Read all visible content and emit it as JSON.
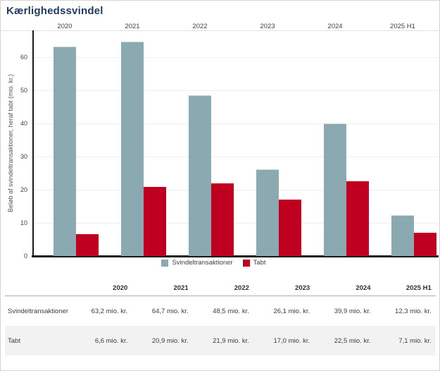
{
  "title": "Kærlighedssvindel",
  "title_color": "#1e3a5f",
  "chart_data": {
    "type": "bar",
    "title": "Kærlighedssvindel",
    "ylabel": "Beløb af svindeltransaktioner, heraf tabt (mio. kr.)",
    "categories": [
      "2020",
      "2021",
      "2022",
      "2023",
      "2024",
      "2025 H1"
    ],
    "series": [
      {
        "name": "Svindeltransaktioner",
        "color": "#8aa9b1",
        "values": [
          63.2,
          64.7,
          48.5,
          26.1,
          39.9,
          12.3
        ]
      },
      {
        "name": "Tabt",
        "color": "#c00020",
        "values": [
          6.6,
          20.9,
          21.9,
          17.0,
          22.5,
          7.1
        ]
      }
    ],
    "ylim": [
      0,
      68
    ],
    "yticks": [
      0,
      10,
      20,
      30,
      40,
      50,
      60
    ],
    "grid": true,
    "legend_position": "bottom",
    "axis_color": "#1a1a1a",
    "grid_color": "#efefef"
  },
  "table": {
    "columns": [
      "2020",
      "2021",
      "2022",
      "2023",
      "2024",
      "2025 H1"
    ],
    "rows": [
      {
        "label": "Svindeltransaktioner",
        "values": [
          "63,2 mio. kr.",
          "64,7 mio. kr.",
          "48,5 mio. kr.",
          "26,1 mio. kr.",
          "39,9 mio. kr.",
          "12,3 mio. kr."
        ]
      },
      {
        "label": "Tabt",
        "values": [
          "6,6 mio. kr.",
          "20,9 mio. kr.",
          "21,9 mio. kr.",
          "17,0 mio. kr.",
          "22,5 mio. kr.",
          "7,1 mio. kr."
        ]
      }
    ],
    "stripe_color": "#f2f2f2"
  }
}
